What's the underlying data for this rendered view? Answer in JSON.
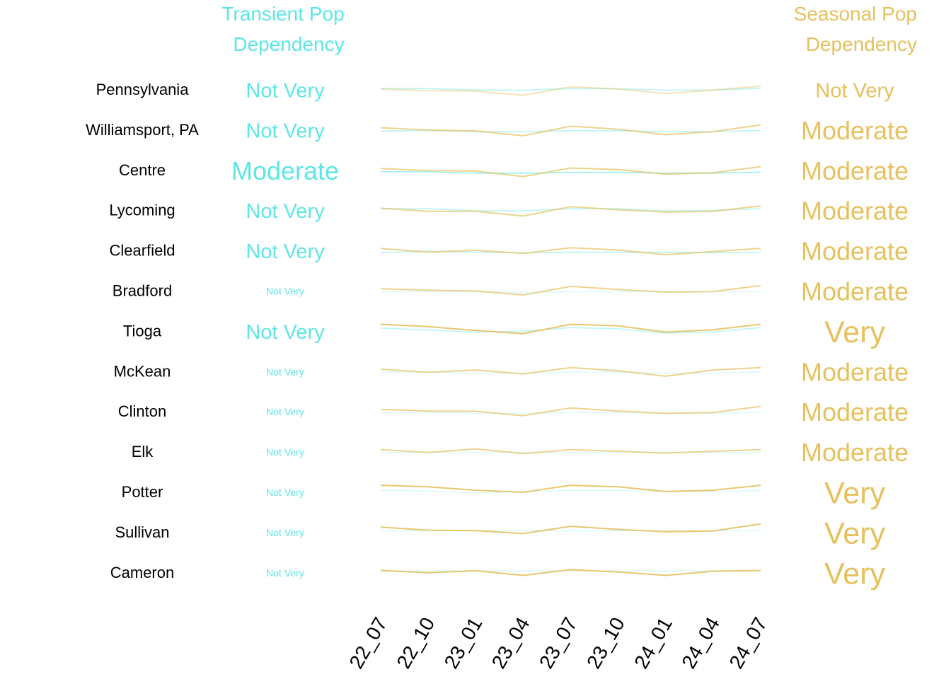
{
  "chart_data": {
    "type": "line",
    "left_header": [
      "Transient Pop",
      "Dependency"
    ],
    "right_header": [
      "Seasonal Pop",
      "Dependency"
    ],
    "colors": {
      "transient": "#5ee6e6",
      "seasonal": "#e6c15e",
      "label": "#000000"
    },
    "x": [
      "22_07",
      "22_10",
      "23_01",
      "23_04",
      "23_07",
      "23_10",
      "24_01",
      "24_04",
      "24_07"
    ],
    "rows": [
      {
        "name": "Pennsylvania",
        "transient_label": "Not Very",
        "seasonal_label": "Not Very",
        "transient_level": 0.55,
        "seasonal_level": 0.3,
        "transient": [
          0.95,
          0.95,
          0.84,
          0.82,
          0.95,
          0.93,
          0.82,
          0.82,
          0.97
        ],
        "seasonal": [
          0.9,
          0.8,
          0.77,
          0.5,
          1.04,
          0.9,
          0.6,
          0.84,
          1.08
        ]
      },
      {
        "name": "Williamsport, PA",
        "transient_label": "Not Very",
        "seasonal_label": "Moderate",
        "transient_level": 0.55,
        "seasonal_level": 0.7,
        "transient": [
          0.77,
          0.82,
          0.72,
          0.72,
          0.8,
          0.8,
          0.72,
          0.72,
          0.82
        ],
        "seasonal": [
          1.0,
          0.85,
          0.8,
          0.48,
          1.1,
          0.9,
          0.55,
          0.75,
          1.18
        ]
      },
      {
        "name": "Centre",
        "transient_label": "Moderate",
        "seasonal_label": "Moderate",
        "transient_level": 0.9,
        "seasonal_level": 0.7,
        "transient": [
          0.75,
          0.72,
          0.62,
          0.62,
          0.68,
          0.68,
          0.62,
          0.62,
          0.7
        ],
        "seasonal": [
          0.97,
          0.83,
          0.8,
          0.45,
          1.0,
          0.9,
          0.6,
          0.7,
          1.08
        ]
      },
      {
        "name": "Lycoming",
        "transient_label": "Not Very",
        "seasonal_label": "Moderate",
        "transient_level": 0.55,
        "seasonal_level": 0.7,
        "transient": [
          1.0,
          1.0,
          0.83,
          0.83,
          1.0,
          1.0,
          0.83,
          0.86,
          1.0
        ],
        "seasonal": [
          1.0,
          0.8,
          0.8,
          0.5,
          1.1,
          0.9,
          0.75,
          0.8,
          1.15
        ]
      },
      {
        "name": "Clearfield",
        "transient_label": "Not Very",
        "seasonal_label": "Moderate",
        "transient_level": 0.55,
        "seasonal_level": 0.7,
        "transient": [
          0.69,
          0.83,
          0.73,
          0.69,
          0.73,
          0.73,
          0.73,
          0.7,
          0.73
        ],
        "seasonal": [
          1.0,
          0.76,
          0.88,
          0.68,
          1.05,
          0.9,
          0.6,
          0.8,
          1.0
        ]
      },
      {
        "name": "Bradford",
        "transient_label": "Not Very",
        "seasonal_label": "Moderate",
        "transient_level": 0.1,
        "seasonal_level": 0.7,
        "transient": [
          0.8,
          0.8,
          0.8,
          0.72,
          0.8,
          0.8,
          0.8,
          0.8,
          0.8
        ],
        "seasonal": [
          1.0,
          0.9,
          0.85,
          0.6,
          1.15,
          0.95,
          0.78,
          0.82,
          1.2
        ]
      },
      {
        "name": "Tioga",
        "transient_label": "Not Very",
        "seasonal_label": "Very",
        "transient_level": 0.55,
        "seasonal_level": 1.0,
        "transient": [
          1.1,
          0.95,
          0.78,
          0.85,
          1.15,
          1.05,
          0.7,
          0.8,
          1.15
        ],
        "seasonal": [
          1.3,
          1.15,
          0.9,
          0.7,
          1.3,
          1.2,
          0.8,
          0.95,
          1.3
        ]
      },
      {
        "name": "McKean",
        "transient_label": "Not Very",
        "seasonal_label": "Moderate",
        "transient_level": 0.1,
        "seasonal_level": 0.7,
        "transient": [
          0.82,
          0.82,
          0.72,
          0.72,
          0.82,
          0.82,
          0.72,
          0.72,
          0.82
        ],
        "seasonal": [
          1.0,
          0.8,
          0.95,
          0.7,
          1.1,
          0.9,
          0.55,
          0.95,
          1.1
        ]
      },
      {
        "name": "Clinton",
        "transient_label": "Not Very",
        "seasonal_label": "Moderate",
        "transient_level": 0.1,
        "seasonal_level": 0.7,
        "transient": [
          0.8,
          0.8,
          0.72,
          0.72,
          0.8,
          0.8,
          0.72,
          0.72,
          0.8
        ],
        "seasonal": [
          1.0,
          0.9,
          0.88,
          0.6,
          1.1,
          0.9,
          0.75,
          0.8,
          1.2
        ]
      },
      {
        "name": "Elk",
        "transient_label": "Not Very",
        "seasonal_label": "Moderate",
        "transient_level": 0.1,
        "seasonal_level": 0.7,
        "transient": [
          0.82,
          0.82,
          0.82,
          0.82,
          0.82,
          0.82,
          0.82,
          0.82,
          0.82
        ],
        "seasonal": [
          1.0,
          0.82,
          1.05,
          0.75,
          1.0,
          0.9,
          0.78,
          0.9,
          1.0
        ]
      },
      {
        "name": "Potter",
        "transient_label": "Not Very",
        "seasonal_label": "Very",
        "transient_level": 0.1,
        "seasonal_level": 1.0,
        "transient": [
          1.0,
          0.95,
          0.8,
          0.9,
          1.0,
          1.0,
          0.9,
          0.9,
          1.0
        ],
        "seasonal": [
          1.3,
          1.2,
          0.98,
          0.85,
          1.3,
          1.2,
          0.9,
          0.98,
          1.3
        ]
      },
      {
        "name": "Sullivan",
        "transient_label": "Not Very",
        "seasonal_label": "Very",
        "transient_level": 0.1,
        "seasonal_level": 1.0,
        "transient": [
          1.0,
          1.0,
          1.0,
          1.0,
          1.0,
          1.0,
          1.0,
          1.0,
          1.0
        ],
        "seasonal": [
          1.2,
          1.0,
          0.97,
          0.78,
          1.25,
          1.05,
          0.9,
          0.95,
          1.4
        ]
      },
      {
        "name": "Cameron",
        "transient_label": "Not Very",
        "seasonal_label": "Very",
        "transient_level": 0.1,
        "seasonal_level": 1.0,
        "transient": [
          1.0,
          1.0,
          1.0,
          1.0,
          1.0,
          1.0,
          1.0,
          1.0,
          1.0
        ],
        "seasonal": [
          1.0,
          0.85,
          0.98,
          0.68,
          1.05,
          0.9,
          0.68,
          0.95,
          1.0
        ]
      }
    ]
  }
}
